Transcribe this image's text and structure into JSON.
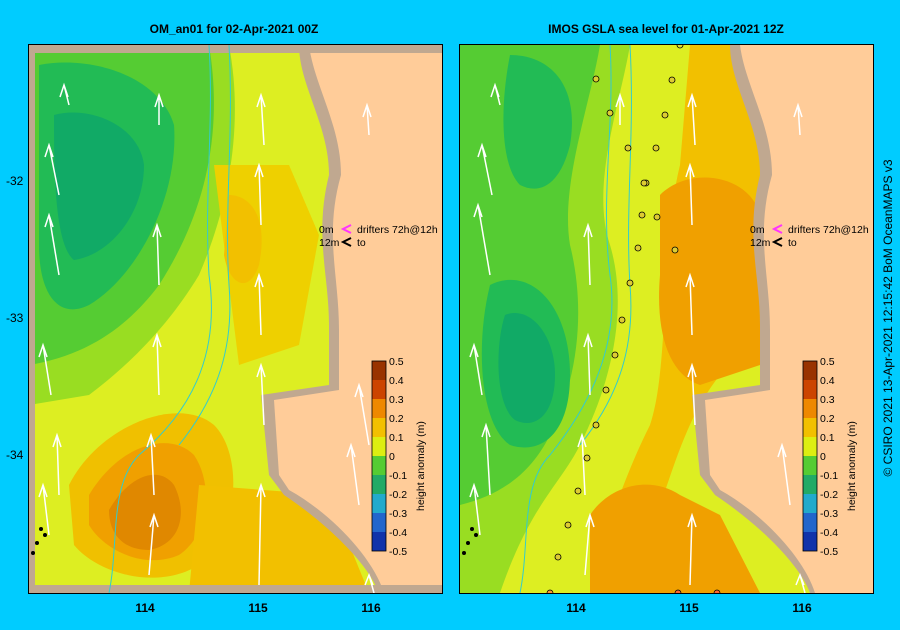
{
  "panels": [
    {
      "title": "OM_an01  for 02-Apr-2021 00Z",
      "drifter_legend": {
        "line1_label": "0m",
        "line1_text": "drifters 72h@12h",
        "line2_label": "12m",
        "line2_text": "to"
      }
    },
    {
      "title": "IMOS GSLA sea level  for 01-Apr-2021 12Z",
      "drifter_legend": {
        "line1_label": "0m",
        "line1_text": "drifters 72h@12h",
        "line2_label": "12m",
        "line2_text": "to"
      }
    }
  ],
  "axes": {
    "x_ticks": [
      "114",
      "115",
      "116"
    ],
    "y_ticks": [
      "-32",
      "-33",
      "-34"
    ]
  },
  "colorbar": {
    "label": "height anomaly (m)",
    "ticks": [
      "0.5",
      "0.4",
      "0.3",
      "0.2",
      "0.1",
      "0",
      "-0.1",
      "-0.2",
      "-0.3",
      "-0.4",
      "-0.5"
    ]
  },
  "credit": "© CSIRO 2021   13-Apr-2021 12:15:42 BoM OceanMAPS v3",
  "colors": {
    "background": "#00ccff",
    "land": "#ffcc99",
    "coast_shelf": "#c0a890",
    "anomaly_green": "#33cc33",
    "anomaly_yellow": "#e6f000",
    "anomaly_orange": "#f0a000"
  }
}
